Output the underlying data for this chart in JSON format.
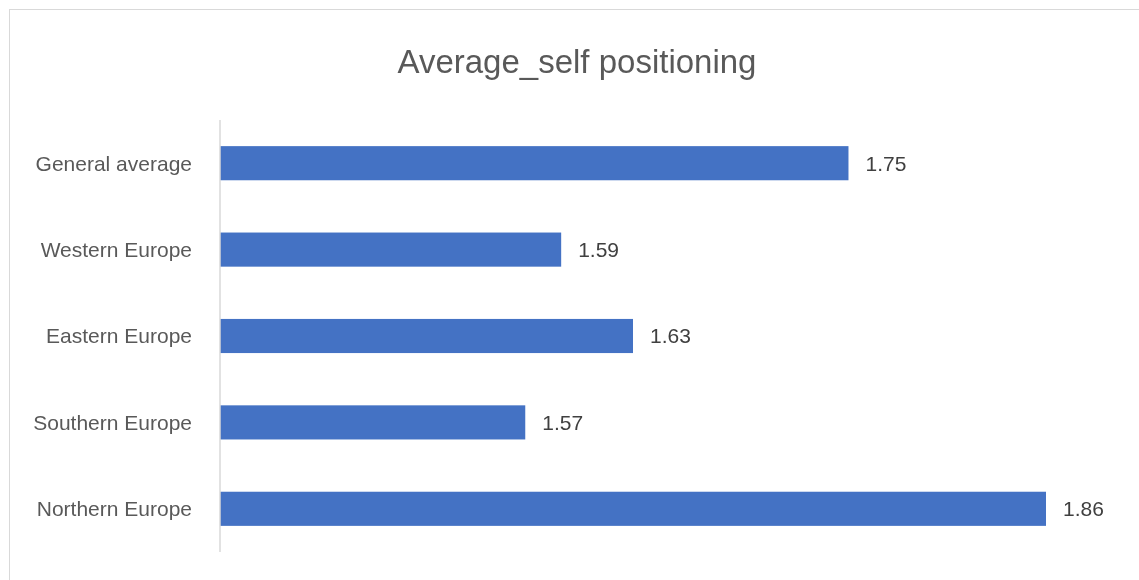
{
  "chart_data": {
    "type": "bar",
    "orientation": "horizontal",
    "title": "Average_self positioning",
    "categories": [
      "General average",
      "Western Europe",
      "Eastern Europe",
      "Southern Europe",
      "Northern Europe"
    ],
    "values": [
      1.75,
      1.59,
      1.63,
      1.57,
      1.86
    ],
    "color": "#4472c4",
    "xlim": [
      1.4,
      1.86
    ],
    "tick_labels": "y",
    "data_labels": true
  }
}
